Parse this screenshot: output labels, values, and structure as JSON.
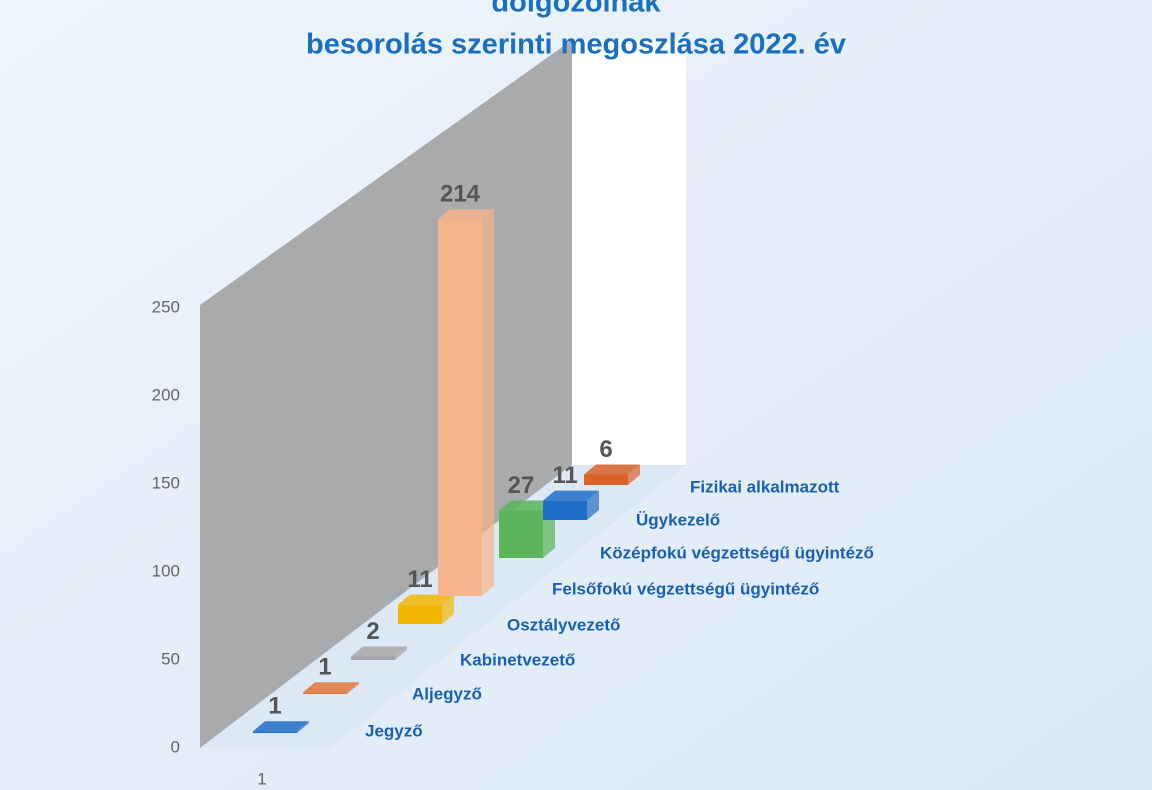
{
  "chart_data": {
    "type": "bar3d",
    "title": "dolgozóinak",
    "subtitle": "besorolás szerinti megoszlása 2022. év",
    "categories": [
      "Jegyző",
      "Aljegyző",
      "Kabinetvezető",
      "Osztályvezető",
      "Felsőfokú végzettségű ügyintéző",
      "Középfokú végzettségű ügyintéző",
      "Ügykezelő",
      "Fizikai alkalmazott"
    ],
    "values": [
      1,
      1,
      2,
      11,
      214,
      27,
      11,
      6
    ],
    "colors": [
      "#1f6fc8",
      "#e0773a",
      "#a6a6a6",
      "#f2b705",
      "#f6b48a",
      "#5bb35a",
      "#1f6fc8",
      "#d8622a"
    ],
    "x_label": "1",
    "ylim": [
      0,
      250
    ],
    "yticks": [
      0,
      50,
      100,
      150,
      200,
      250
    ]
  }
}
